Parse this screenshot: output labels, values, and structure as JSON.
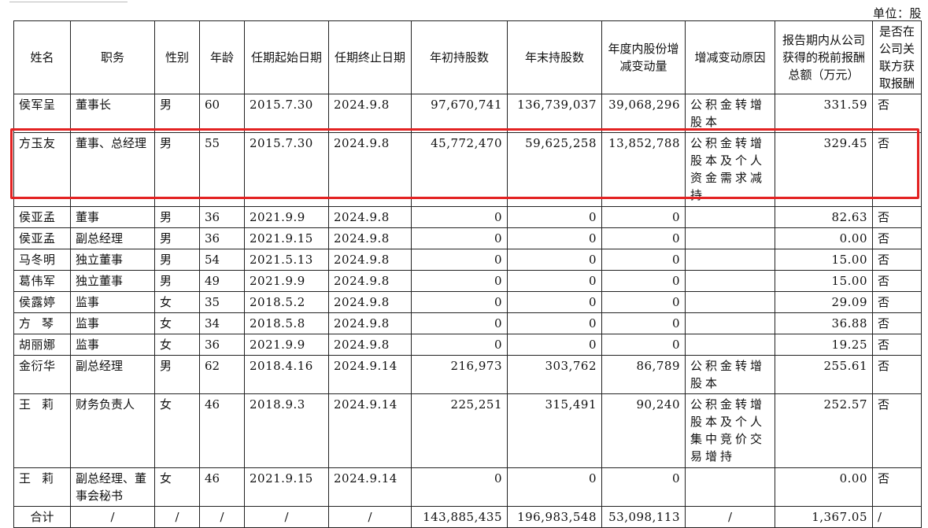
{
  "unit_label": "单位：股",
  "headers": [
    "姓名",
    "职务",
    "性别",
    "年龄",
    "任期起始日期",
    "任期终止日期",
    "年初持股数",
    "年末持股数",
    "年度内股份增减变动量",
    "增减变动原因",
    "报告期内从公司获得的税前报酬总额（万元）",
    "是否在公司关联方获取报酬"
  ],
  "rows": [
    {
      "name": "侯军呈",
      "position": "董事长",
      "gender": "男",
      "age": "60",
      "start": "2015.7.30",
      "end": "2024.9.8",
      "shares_begin": "97,670,741",
      "shares_end": "136,739,037",
      "change": "39,068,296",
      "reason": "公积金转增股本",
      "pay": "331.59",
      "related": "否"
    },
    {
      "name": "方玉友",
      "position": "董事、总经理",
      "gender": "男",
      "age": "55",
      "start": "2015.7.30",
      "end": "2024.9.8",
      "shares_begin": "45,772,470",
      "shares_end": "59,625,258",
      "change": "13,852,788",
      "reason": "公积金转增股本及个人资金需求减持",
      "pay": "329.45",
      "related": "否"
    },
    {
      "name": "侯亚孟",
      "position": "董事",
      "gender": "男",
      "age": "36",
      "start": "2021.9.9",
      "end": "2024.9.8",
      "shares_begin": "0",
      "shares_end": "0",
      "change": "0",
      "reason": "",
      "pay": "82.63",
      "related": "否"
    },
    {
      "name": "侯亚孟",
      "position": "副总经理",
      "gender": "男",
      "age": "36",
      "start": "2021.9.15",
      "end": "2024.9.8",
      "shares_begin": "0",
      "shares_end": "0",
      "change": "0",
      "reason": "",
      "pay": "0.00",
      "related": "否"
    },
    {
      "name": "马冬明",
      "position": "独立董事",
      "gender": "男",
      "age": "54",
      "start": "2021.5.13",
      "end": "2024.9.8",
      "shares_begin": "0",
      "shares_end": "0",
      "change": "0",
      "reason": "",
      "pay": "15.00",
      "related": "否"
    },
    {
      "name": "葛伟军",
      "position": "独立董事",
      "gender": "男",
      "age": "49",
      "start": "2021.9.9",
      "end": "2024.9.8",
      "shares_begin": "0",
      "shares_end": "0",
      "change": "0",
      "reason": "",
      "pay": "15.00",
      "related": "否"
    },
    {
      "name": "侯露婷",
      "position": "监事",
      "gender": "女",
      "age": "35",
      "start": "2018.5.2",
      "end": "2024.9.8",
      "shares_begin": "0",
      "shares_end": "0",
      "change": "0",
      "reason": "",
      "pay": "29.09",
      "related": "否"
    },
    {
      "name": "方琴",
      "position": "监事",
      "gender": "女",
      "age": "34",
      "start": "2018.5.8",
      "end": "2024.9.8",
      "shares_begin": "0",
      "shares_end": "0",
      "change": "0",
      "reason": "",
      "pay": "36.88",
      "related": "否"
    },
    {
      "name": "胡丽娜",
      "position": "监事",
      "gender": "女",
      "age": "36",
      "start": "2021.9.9",
      "end": "2024.9.8",
      "shares_begin": "0",
      "shares_end": "0",
      "change": "0",
      "reason": "",
      "pay": "19.25",
      "related": "否"
    },
    {
      "name": "金衍华",
      "position": "副总经理",
      "gender": "男",
      "age": "62",
      "start": "2018.4.16",
      "end": "2024.9.14",
      "shares_begin": "216,973",
      "shares_end": "303,762",
      "change": "86,789",
      "reason": "公积金转增股本",
      "pay": "255.61",
      "related": "否"
    },
    {
      "name": "王莉",
      "position": "财务负责人",
      "gender": "女",
      "age": "46",
      "start": "2018.9.3",
      "end": "2024.9.14",
      "shares_begin": "225,251",
      "shares_end": "315,491",
      "change": "90,240",
      "reason": "公积金转增股本及个人集中竞价交易增持",
      "pay": "252.57",
      "related": "否"
    },
    {
      "name": "王莉",
      "position": "副总经理、董事会秘书",
      "gender": "女",
      "age": "46",
      "start": "2021.9.15",
      "end": "2024.9.14",
      "shares_begin": "0",
      "shares_end": "0",
      "change": "0",
      "reason": "",
      "pay": "0.00",
      "related": "否"
    }
  ],
  "total": {
    "label": "合计",
    "slash": "/",
    "shares_begin": "143,885,435",
    "shares_end": "196,983,548",
    "change": "53,098,113",
    "pay": "1,367.05"
  }
}
